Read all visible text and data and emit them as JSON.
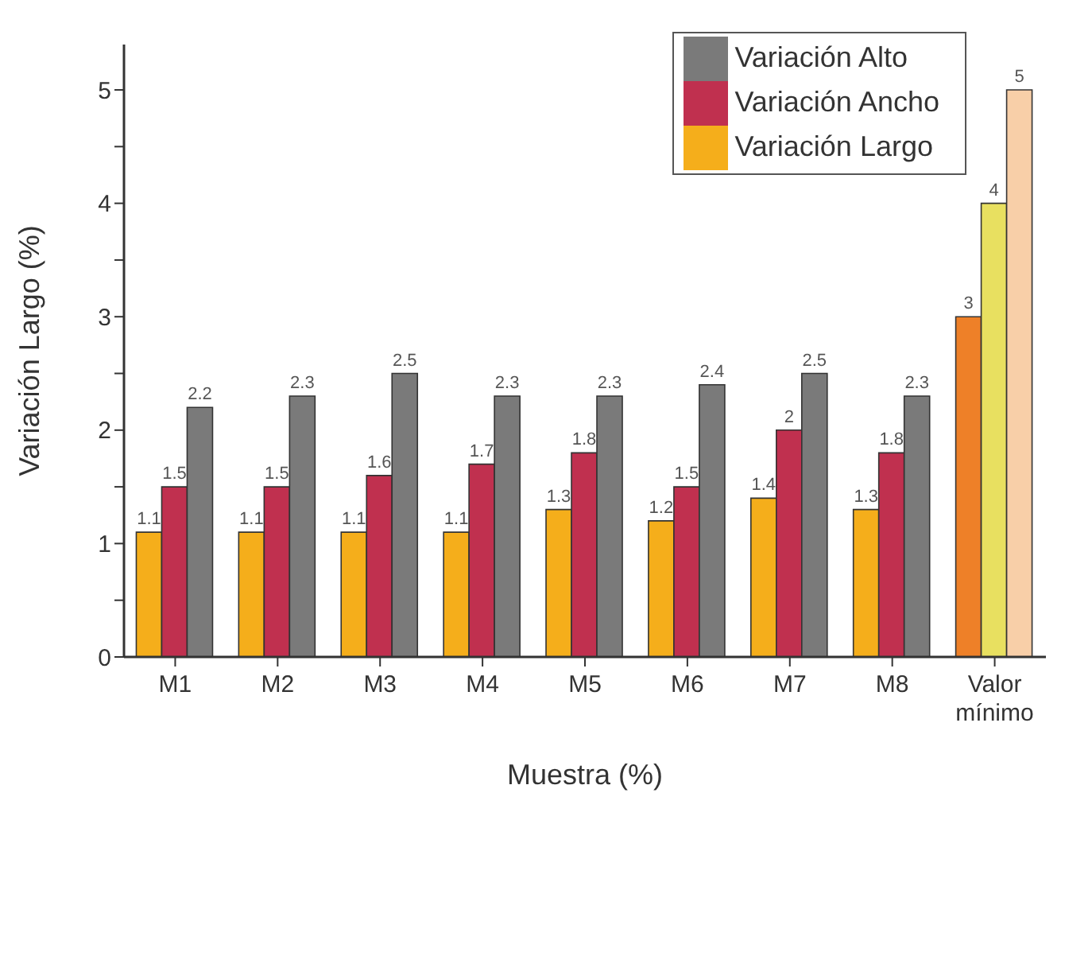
{
  "chart_data": {
    "type": "bar",
    "xlabel": "Muestra (%)",
    "ylabel": "Variación Largo (%)",
    "categories": [
      "M1",
      "M2",
      "M3",
      "M4",
      "M5",
      "M6",
      "M7",
      "M8",
      "Valor mínimo"
    ],
    "series": [
      {
        "name": "Variación Largo",
        "color": "#f5ae1b",
        "colors": [
          "#f5ae1b",
          "#f5ae1b",
          "#f5ae1b",
          "#f5ae1b",
          "#f5ae1b",
          "#f5ae1b",
          "#f5ae1b",
          "#f5ae1b",
          "#ee8028"
        ],
        "values": [
          1.1,
          1.1,
          1.1,
          1.1,
          1.3,
          1.2,
          1.4,
          1.3,
          3
        ]
      },
      {
        "name": "Variación Ancho",
        "color": "#c0304f",
        "colors": [
          "#c0304f",
          "#c0304f",
          "#c0304f",
          "#c0304f",
          "#c0304f",
          "#c0304f",
          "#c0304f",
          "#c0304f",
          "#e8e060"
        ],
        "values": [
          1.5,
          1.5,
          1.6,
          1.7,
          1.8,
          1.5,
          2,
          1.8,
          4
        ]
      },
      {
        "name": "Variación Alto",
        "color": "#7a7a7a",
        "colors": [
          "#7a7a7a",
          "#7a7a7a",
          "#7a7a7a",
          "#7a7a7a",
          "#7a7a7a",
          "#7a7a7a",
          "#7a7a7a",
          "#7a7a7a",
          "#f8cfa8"
        ],
        "values": [
          2.2,
          2.3,
          2.5,
          2.3,
          2.3,
          2.4,
          2.5,
          2.3,
          5
        ]
      }
    ],
    "ylim": [
      0,
      5.4
    ],
    "yticks": [
      0,
      {
        "value": 0.5,
        "label": null
      },
      1,
      {
        "value": 1.5,
        "label": null
      },
      2,
      {
        "value": 2.5,
        "label": null
      },
      3,
      {
        "value": 3.5,
        "label": null
      },
      4,
      {
        "value": 4.5,
        "label": null
      },
      5
    ],
    "data_labels": true,
    "legend": "top right",
    "grid": false
  }
}
